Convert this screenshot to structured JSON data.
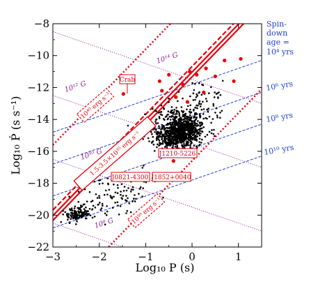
{
  "chart_data": {
    "type": "scatter",
    "title": "",
    "xlabel": "Log₁₀ P (s)",
    "ylabel": "Log₁₀ Ṗ (s s⁻¹)",
    "xlim": [
      -3,
      1.5
    ],
    "ylim": [
      -22,
      -8
    ],
    "x_ticks": [
      "−3",
      "−2",
      "−1",
      "0",
      "1"
    ],
    "y_ticks": [
      "−22",
      "−20",
      "−18",
      "−16",
      "−14",
      "−12",
      "−10",
      "−8"
    ],
    "colors": {
      "pulsar_points": "#000000",
      "highlight_points": "#e8000b",
      "death_line": "#e8000b",
      "spin_down_lines": "#1f3fd6",
      "b_field_lines": "#8b1a8b",
      "spin_label_text": "#1f3fd6",
      "b_label_text": "#8b1a8b"
    },
    "field_lines": [
      {
        "label": "10¹⁴ G",
        "log_b": 14
      },
      {
        "label": "10¹² G",
        "log_b": 12
      },
      {
        "label": "10¹⁰ G",
        "log_b": 10
      },
      {
        "label": "10⁸ G",
        "log_b": 8
      }
    ],
    "spin_down_header": [
      "Spin-",
      "down",
      "age ="
    ],
    "spin_down_lines": [
      {
        "label": "10⁴ yrs",
        "log_age": 4
      },
      {
        "label": "10⁶ yrs",
        "log_age": 6
      },
      {
        "label": "10⁸ yrs",
        "log_age": 8
      },
      {
        "label": "10¹⁰ yrs",
        "log_age": 10
      }
    ],
    "annotations": [
      {
        "text": "Crab",
        "x": -1.48,
        "y": -12.7
      },
      {
        "text": "J1210-5226",
        "x": -0.4,
        "y": -16.4
      },
      {
        "text": "J0821-4300",
        "x": -1.0,
        "y": -17.6
      },
      {
        "text": "J1852+0040",
        "x": -0.35,
        "y": -17.6
      },
      {
        "text": "10⁴⁰ erg s⁻¹",
        "x": -2.0,
        "y": -13.3
      },
      {
        "text": "1.5-3.5×10³⁵ erg s⁻¹",
        "x": -1.6,
        "y": -16.6
      },
      {
        "text": "10³⁰ erg s⁻¹",
        "x": -0.75,
        "y": -20.0
      }
    ],
    "highlight_points": [
      {
        "x": -1.48,
        "y": -12.4
      },
      {
        "x": -0.7,
        "y": -11.6
      },
      {
        "x": -0.65,
        "y": -12.2
      },
      {
        "x": -0.5,
        "y": -11.2
      },
      {
        "x": -0.35,
        "y": -12.6
      },
      {
        "x": -0.2,
        "y": -11.8
      },
      {
        "x": -0.05,
        "y": -11.0
      },
      {
        "x": 0.1,
        "y": -11.2
      },
      {
        "x": 0.3,
        "y": -10.8
      },
      {
        "x": 0.5,
        "y": -11.3
      },
      {
        "x": 0.7,
        "y": -10.3
      },
      {
        "x": 0.9,
        "y": -11.6
      },
      {
        "x": 1.05,
        "y": -10.2
      },
      {
        "x": 0.25,
        "y": -12.3
      },
      {
        "x": -0.1,
        "y": -12.9
      },
      {
        "x": -0.4,
        "y": -16.6
      },
      {
        "x": -1.0,
        "y": -17.5
      },
      {
        "x": -0.3,
        "y": -17.6
      }
    ]
  }
}
